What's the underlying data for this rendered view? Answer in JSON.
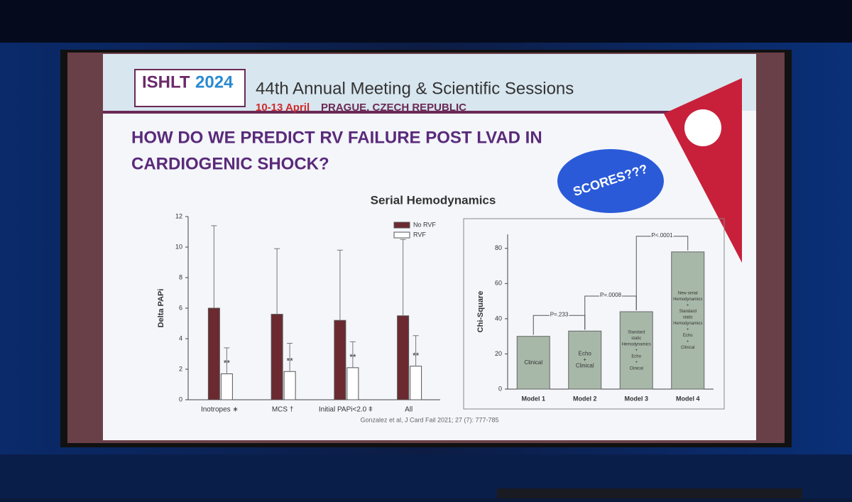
{
  "slide": {
    "logo": {
      "part1": "ISHLT",
      "part2": "2024"
    },
    "meeting": "44th Annual Meeting & Scientific Sessions",
    "dates": "10-13 April",
    "place": "PRAGUE, CZECH REPUBLIC",
    "title_lines": [
      "HOW DO WE PREDICT RV FAILURE POST LVAD IN",
      "CARDIOGENIC SHOCK?"
    ],
    "badge": "SCORES???",
    "citation": "Gonzalez et al, J Card Fail 2021; 27 (7): 777-785"
  },
  "chart_data": [
    {
      "type": "errorbar",
      "title": "Serial Hemodynamics",
      "y_label": "Delta PAPi",
      "categories": [
        "Inotropes ∗",
        "MCS †",
        "Initial PAPi<2.0 ǂ",
        "All"
      ],
      "series": [
        {
          "name": "No RVF",
          "color": "#6b2a30",
          "values": [
            6,
            5.6,
            5.2,
            5.5
          ],
          "errors": [
            5.4,
            4.3,
            4.6,
            5.0
          ]
        },
        {
          "name": "RVF",
          "color": "#ffffff",
          "values": [
            1.7,
            1.85,
            2.1,
            2.2
          ],
          "errors": [
            1.7,
            1.85,
            1.7,
            2.0
          ],
          "annotations": [
            "**",
            "**",
            "**",
            "**"
          ]
        }
      ],
      "ylim": [
        0,
        12
      ],
      "yticks": [
        0,
        2,
        4,
        6,
        8,
        10,
        12
      ]
    },
    {
      "type": "bar",
      "y_label": "Chi-Square",
      "categories": [
        "Model 1",
        "Model 2",
        "Model 3",
        "Model 4"
      ],
      "values": [
        30,
        33,
        44,
        78
      ],
      "color": "#a8b8a8",
      "bar_texts": [
        [
          "Clinical"
        ],
        [
          "Echo",
          "+",
          "Clinical"
        ],
        [
          "Standard",
          "static",
          "Hemodynamics",
          "+",
          "Echo",
          "+",
          "Clinical"
        ],
        [
          "New serial",
          "Hemodynamics",
          "+",
          "Standard",
          "static",
          "Hemodynamics",
          "+",
          "Echo",
          "+",
          "Clinical"
        ]
      ],
      "comparisons": [
        "P=.233",
        "P=.0008",
        "P<.0001"
      ],
      "ylim": [
        0,
        88
      ],
      "yticks": [
        0,
        20,
        40,
        60,
        80
      ]
    }
  ]
}
